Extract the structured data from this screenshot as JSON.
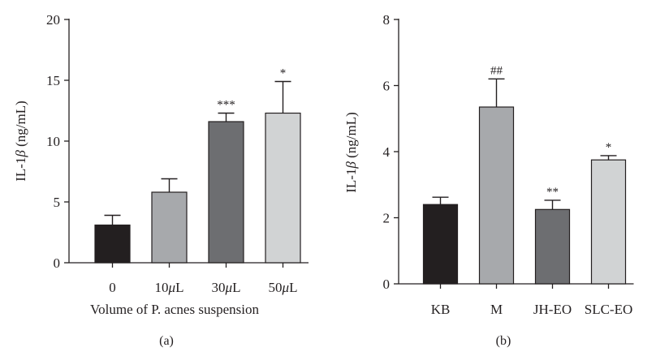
{
  "chart_data": [
    {
      "type": "bar",
      "panel_label": "(a)",
      "xlabel": "Volume of P. acnes suspension",
      "ylabel_prefix": "IL-1",
      "ylabel_symbol": "β",
      "ylabel_suffix": " (ng/mL)",
      "ylim": [
        0,
        20
      ],
      "yticks": [
        0,
        5,
        10,
        15,
        20
      ],
      "categories": [
        "0",
        "10μL",
        "30μL",
        "50μL"
      ],
      "values": [
        3.1,
        5.8,
        11.6,
        12.3
      ],
      "errors": [
        0.8,
        1.1,
        0.7,
        2.6
      ],
      "significance": [
        "",
        "",
        "***",
        "*"
      ],
      "colors": [
        "#231f20",
        "#a7a9ac",
        "#6d6e71",
        "#d1d3d4"
      ],
      "grid": false,
      "legend": "none"
    },
    {
      "type": "bar",
      "panel_label": "(b)",
      "xlabel": "",
      "ylabel_prefix": "IL-1",
      "ylabel_symbol": "β",
      "ylabel_suffix": " (ng/mL)",
      "ylim": [
        0,
        8
      ],
      "yticks": [
        0,
        2,
        4,
        6,
        8
      ],
      "categories": [
        "KB",
        "M",
        "JH-EO",
        "SLC-EO"
      ],
      "values": [
        2.4,
        5.35,
        2.25,
        3.75
      ],
      "errors": [
        0.22,
        0.85,
        0.28,
        0.13
      ],
      "significance": [
        "",
        "##",
        "**",
        "*"
      ],
      "colors": [
        "#231f20",
        "#a7a9ac",
        "#6d6e71",
        "#d1d3d4"
      ],
      "grid": false,
      "legend": "none"
    }
  ]
}
